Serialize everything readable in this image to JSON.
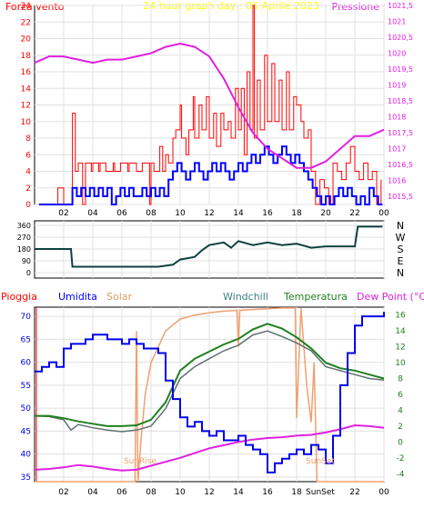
{
  "colors": {
    "wind_gust": "#ff0000",
    "wind_avg": "#0000ff",
    "pressure": "#e020e0",
    "direction": "#104040",
    "humidity": "#0000ee",
    "solar": "#f0a070",
    "windchill": "#607070",
    "temperature": "#208020",
    "dewpoint": "#e020e0",
    "rain": "#ff0000",
    "title": "#ffff00",
    "grid": "#e0e0e0",
    "frame": "#000000"
  },
  "chart_data": [
    {
      "type": "line",
      "title": "24 hour graph day : 06 Aprile 2023",
      "left_axis_label": "Forza vento",
      "right_axis_label": "Pressione",
      "x_ticks": [
        "02",
        "04",
        "06",
        "08",
        "10",
        "12",
        "14",
        "16",
        "18",
        "20",
        "22",
        "00"
      ],
      "y_left_ticks": [
        0,
        2,
        4,
        6,
        8,
        10,
        12,
        14,
        16,
        18,
        20,
        22,
        24
      ],
      "y_right_ticks": [
        "1015,5",
        "1016",
        "1016,5",
        "1017",
        "1017,5",
        "1018",
        "1018,5",
        "1019",
        "1019,5",
        "1020",
        "1020,5",
        "1021",
        "1021,5"
      ],
      "ylim_left": [
        0,
        24
      ],
      "ylim_right": [
        1015.25,
        1021.5
      ],
      "series": [
        {
          "key": "gust",
          "color": "wind_gust",
          "x": [
            0.3,
            1.5,
            1.6,
            2.0,
            2.5,
            2.6,
            2.8,
            3.0,
            3.3,
            3.5,
            3.9,
            4.0,
            4.4,
            4.5,
            4.9,
            5.0,
            5.4,
            5.5,
            5.9,
            6.0,
            6.4,
            6.5,
            6.9,
            7.0,
            7.4,
            7.5,
            7.9,
            8.0,
            8.2,
            8.6,
            8.8,
            9.0,
            9.2,
            9.5,
            9.7,
            10.0,
            10.1,
            10.4,
            10.6,
            10.9,
            11.0,
            11.3,
            11.5,
            11.8,
            12.0,
            12.3,
            12.5,
            12.8,
            13.0,
            13.3,
            13.5,
            13.8,
            14.0,
            14.2,
            14.4,
            14.6,
            14.8,
            15.0,
            15.1,
            15.3,
            15.5,
            15.8,
            16.0,
            16.3,
            16.5,
            16.8,
            17.0,
            17.3,
            17.5,
            17.8,
            18.0,
            18.3,
            18.5,
            18.8,
            19.0,
            19.3,
            19.6,
            19.9,
            20.2,
            20.5,
            20.8,
            21.1,
            21.4,
            21.7,
            22.0,
            22.3,
            22.6,
            22.9,
            23.2,
            23.5,
            23.8
          ],
          "values": [
            0,
            0,
            2,
            0,
            0,
            11,
            4,
            5,
            0,
            5,
            4,
            5,
            4,
            5,
            4,
            4,
            5,
            4,
            5,
            5,
            4,
            5,
            5,
            4,
            5,
            5,
            0,
            5,
            4,
            7,
            4,
            6,
            5,
            8,
            9,
            12,
            8,
            6,
            9,
            13,
            8,
            12,
            9,
            13,
            8,
            11,
            7,
            11,
            9,
            10,
            8,
            14,
            9,
            14,
            6,
            16,
            9,
            24,
            8,
            15,
            9,
            18,
            10,
            17,
            10,
            15,
            9,
            16,
            9,
            13,
            12,
            10,
            8,
            9,
            4,
            0,
            3,
            2,
            0,
            5,
            4,
            3,
            5,
            7,
            4,
            3,
            5,
            3,
            4,
            0,
            3
          ]
        },
        {
          "key": "avg",
          "color": "wind_avg",
          "x": [
            0.3,
            2.4,
            2.6,
            2.9,
            3.2,
            3.5,
            3.8,
            4.1,
            4.4,
            4.7,
            5.0,
            5.3,
            5.6,
            5.9,
            6.2,
            6.5,
            6.8,
            7.1,
            7.4,
            7.7,
            8.0,
            8.3,
            8.6,
            8.9,
            9.2,
            9.5,
            9.8,
            10.1,
            10.4,
            10.7,
            11.0,
            11.3,
            11.6,
            11.9,
            12.2,
            12.5,
            12.8,
            13.1,
            13.4,
            13.7,
            14.0,
            14.3,
            14.6,
            14.9,
            15.2,
            15.5,
            15.8,
            16.1,
            16.4,
            16.7,
            17.0,
            17.3,
            17.6,
            17.9,
            18.2,
            18.5,
            18.8,
            19.1,
            19.4,
            19.7,
            20.0,
            20.3,
            20.6,
            20.9,
            21.2,
            21.5,
            21.8,
            22.1,
            22.4,
            22.7,
            23.0,
            23.3,
            23.6,
            23.9
          ],
          "values": [
            0,
            0,
            2,
            1,
            2,
            1,
            2,
            1,
            2,
            1,
            2,
            0,
            1,
            2,
            1,
            2,
            1,
            1,
            2,
            1,
            2,
            1,
            2,
            1,
            3,
            4,
            5,
            4,
            3,
            4,
            5,
            4,
            3,
            4,
            5,
            4,
            5,
            4,
            3,
            4,
            5,
            4,
            5,
            6,
            5,
            6,
            7,
            6,
            5,
            6,
            7,
            6,
            5,
            6,
            5,
            4,
            3,
            2,
            1,
            0,
            1,
            0,
            1,
            2,
            1,
            2,
            1,
            0,
            1,
            0,
            2,
            1,
            0,
            0
          ]
        },
        {
          "key": "pressure",
          "color": "pressure",
          "axis": "right",
          "x": [
            0.0,
            1.0,
            2.0,
            3.0,
            4.0,
            5.0,
            6.0,
            7.0,
            8.0,
            9.0,
            10.0,
            11.0,
            12.0,
            13.0,
            14.0,
            15.0,
            16.0,
            17.0,
            18.0,
            19.0,
            20.0,
            21.0,
            22.0,
            23.0,
            24.0
          ],
          "values": [
            1019.7,
            1019.9,
            1019.9,
            1019.8,
            1019.7,
            1019.8,
            1019.8,
            1019.9,
            1020.0,
            1020.2,
            1020.3,
            1020.2,
            1019.9,
            1019.2,
            1018.3,
            1017.5,
            1017.0,
            1016.7,
            1016.4,
            1016.4,
            1016.6,
            1017.0,
            1017.4,
            1017.4,
            1017.6
          ]
        }
      ]
    },
    {
      "type": "line",
      "y_right_labels": [
        "N",
        "W",
        "S",
        "E",
        "N"
      ],
      "y_left_ticks": [
        0,
        90,
        180,
        270,
        360
      ],
      "ylim": [
        0,
        360
      ],
      "series": [
        {
          "key": "direction",
          "color": "direction",
          "x": [
            0.0,
            2.5,
            2.6,
            8.5,
            9.5,
            10.0,
            11.0,
            11.5,
            12.0,
            13.0,
            13.5,
            14.0,
            15.0,
            16.0,
            17.0,
            18.0,
            19.0,
            20.0,
            21.0,
            22.0,
            22.2,
            23.9
          ],
          "values": [
            180,
            180,
            45,
            45,
            60,
            100,
            120,
            170,
            210,
            230,
            190,
            240,
            210,
            230,
            210,
            220,
            190,
            200,
            200,
            200,
            350,
            350
          ]
        }
      ]
    },
    {
      "type": "line",
      "legend": [
        "Pioggia",
        "Umidita",
        "Solar",
        "Windchill",
        "Temperatura",
        "Dew Point (°C)"
      ],
      "y_left_ticks": [
        35,
        40,
        45,
        50,
        55,
        60,
        65,
        70
      ],
      "y_right_ticks": [
        -4,
        -2,
        0,
        2,
        4,
        6,
        8,
        10,
        12,
        14,
        16
      ],
      "ylim_left": [
        34,
        72
      ],
      "ylim_right": [
        -5,
        17
      ],
      "annotations": [
        "SunRise",
        "SunSet",
        "SunSet"
      ],
      "series": [
        {
          "key": "humidity",
          "color": "humidity",
          "axis": "left",
          "x": [
            0.0,
            0.5,
            1.0,
            1.5,
            2.0,
            2.5,
            3.0,
            3.5,
            4.0,
            4.5,
            5.0,
            5.5,
            6.0,
            6.5,
            7.0,
            7.5,
            8.0,
            8.5,
            9.0,
            9.5,
            10.0,
            10.5,
            11.0,
            11.5,
            12.0,
            12.5,
            13.0,
            13.5,
            14.0,
            14.5,
            15.0,
            15.5,
            16.0,
            16.5,
            17.0,
            17.5,
            18.0,
            18.5,
            19.0,
            19.5,
            20.0,
            20.5,
            21.0,
            21.5,
            22.0,
            22.5,
            23.0,
            23.5,
            24.0
          ],
          "values": [
            58,
            59,
            60,
            59,
            63,
            64,
            64,
            65,
            66,
            66,
            65,
            65,
            64,
            65,
            64,
            63,
            63,
            62,
            56,
            52,
            48,
            46,
            47,
            45,
            44,
            45,
            43,
            43,
            44,
            42,
            41,
            40,
            36,
            38,
            39,
            40,
            41,
            40,
            42,
            41,
            38,
            44,
            55,
            62,
            68,
            70,
            70,
            70,
            71
          ]
        },
        {
          "key": "temperature",
          "color": "temperature",
          "axis": "right",
          "x": [
            0.0,
            1.0,
            2.0,
            3.0,
            4.0,
            5.0,
            6.0,
            7.0,
            8.0,
            9.0,
            10.0,
            11.0,
            12.0,
            13.0,
            14.0,
            15.0,
            16.0,
            17.0,
            18.0,
            19.0,
            20.0,
            21.0,
            22.0,
            23.0,
            24.0
          ],
          "values": [
            3.3,
            3.3,
            3.0,
            2.6,
            2.3,
            2.0,
            2.0,
            2.1,
            2.8,
            5.0,
            9.0,
            10.5,
            11.4,
            12.3,
            13.0,
            14.2,
            14.9,
            14.3,
            13.2,
            11.8,
            10.0,
            9.3,
            9.0,
            8.5,
            8.0
          ]
        },
        {
          "key": "windchill",
          "color": "windchill",
          "axis": "right",
          "x": [
            0.0,
            1.0,
            2.0,
            2.5,
            3.0,
            4.0,
            5.0,
            6.0,
            7.0,
            8.0,
            9.0,
            10.0,
            11.0,
            12.0,
            13.0,
            14.0,
            15.0,
            16.0,
            17.0,
            18.0,
            19.0,
            20.0,
            21.0,
            22.0,
            23.0,
            24.0
          ],
          "values": [
            3.3,
            3.2,
            2.8,
            1.5,
            2.2,
            1.8,
            1.5,
            1.3,
            1.5,
            2.0,
            4.2,
            8.0,
            9.5,
            10.5,
            11.5,
            12.2,
            13.5,
            14.0,
            13.3,
            12.5,
            11.5,
            9.5,
            9.0,
            8.5,
            8.0,
            7.8
          ]
        },
        {
          "key": "dewpoint",
          "color": "dewpoint",
          "axis": "right",
          "x": [
            0.0,
            1.0,
            2.0,
            3.0,
            4.0,
            5.0,
            6.0,
            7.0,
            8.0,
            9.0,
            10.0,
            11.0,
            12.0,
            13.0,
            14.0,
            15.0,
            16.0,
            17.0,
            18.0,
            19.0,
            20.0,
            21.0,
            22.0,
            23.0,
            24.0
          ],
          "values": [
            -3.5,
            -3.4,
            -3.2,
            -2.9,
            -3.1,
            -3.4,
            -3.6,
            -3.5,
            -3.0,
            -2.5,
            -2.0,
            -1.4,
            -0.8,
            -0.4,
            0.0,
            0.3,
            0.5,
            0.6,
            0.8,
            0.9,
            1.2,
            1.6,
            2.1,
            2.0,
            1.8
          ]
        },
        {
          "key": "solar",
          "color": "solar",
          "axis": "right",
          "x": [
            0.0,
            6.9,
            7.0,
            7.1,
            7.3,
            7.6,
            8.0,
            9.0,
            10.0,
            11.0,
            12.0,
            13.0,
            13.9,
            14.0,
            14.1,
            15.0,
            16.0,
            17.0,
            17.9,
            18.0,
            18.3,
            18.7,
            19.0,
            19.2,
            19.4,
            24.0
          ],
          "values": [
            -5,
            -5,
            14,
            -5,
            0,
            6,
            10,
            14,
            15.5,
            16,
            16.3,
            16.5,
            16.6,
            12,
            16.6,
            16.7,
            16.8,
            16.9,
            16.9,
            3,
            16.9,
            7,
            2.5,
            10,
            -5,
            -5
          ]
        }
      ]
    }
  ]
}
